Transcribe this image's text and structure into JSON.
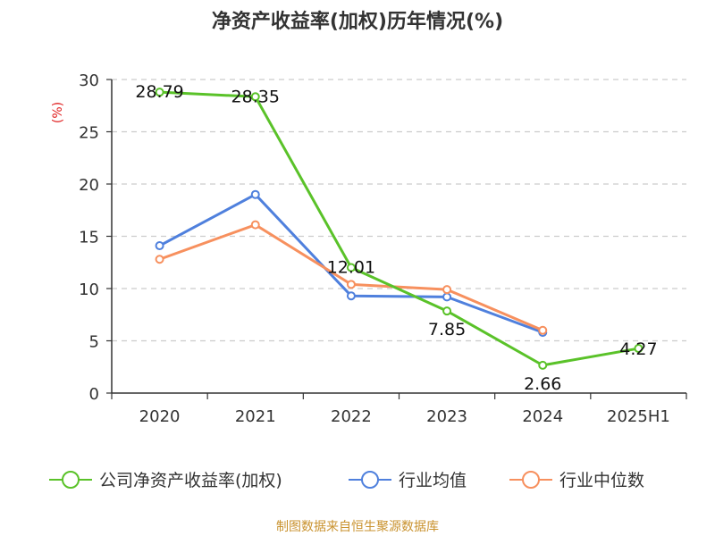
{
  "title": "净资产收益率(加权)历年情况(%)",
  "source": "制图数据来自恒生聚源数据库",
  "colors": {
    "company": "#5ac229",
    "industry_avg": "#4f80dd",
    "industry_median": "#f7905e",
    "ylabel": "#e02020",
    "grid": "#cccccc",
    "axis": "#333333"
  },
  "chart_data": {
    "type": "line",
    "title": "净资产收益率(加权)历年情况(%)",
    "ylabel": "(%)",
    "xlabel": "",
    "categories": [
      "2020",
      "2021",
      "2022",
      "2023",
      "2024",
      "2025H1"
    ],
    "ylim": [
      0,
      30
    ],
    "yticks": [
      0,
      5,
      10,
      15,
      20,
      25,
      30
    ],
    "grid": true,
    "legend_position": "bottom",
    "series": [
      {
        "name": "公司净资产收益率(加权)",
        "values": [
          28.79,
          28.35,
          12.01,
          7.85,
          2.66,
          4.27
        ],
        "data_labels": [
          "28.79",
          "28.35",
          "12.01",
          "7.85",
          "2.66",
          "4.27"
        ]
      },
      {
        "name": "行业均值",
        "values": [
          14.1,
          19.0,
          9.3,
          9.2,
          5.8,
          null
        ]
      },
      {
        "name": "行业中位数",
        "values": [
          12.8,
          16.1,
          10.4,
          9.9,
          6.0,
          null
        ]
      }
    ]
  }
}
